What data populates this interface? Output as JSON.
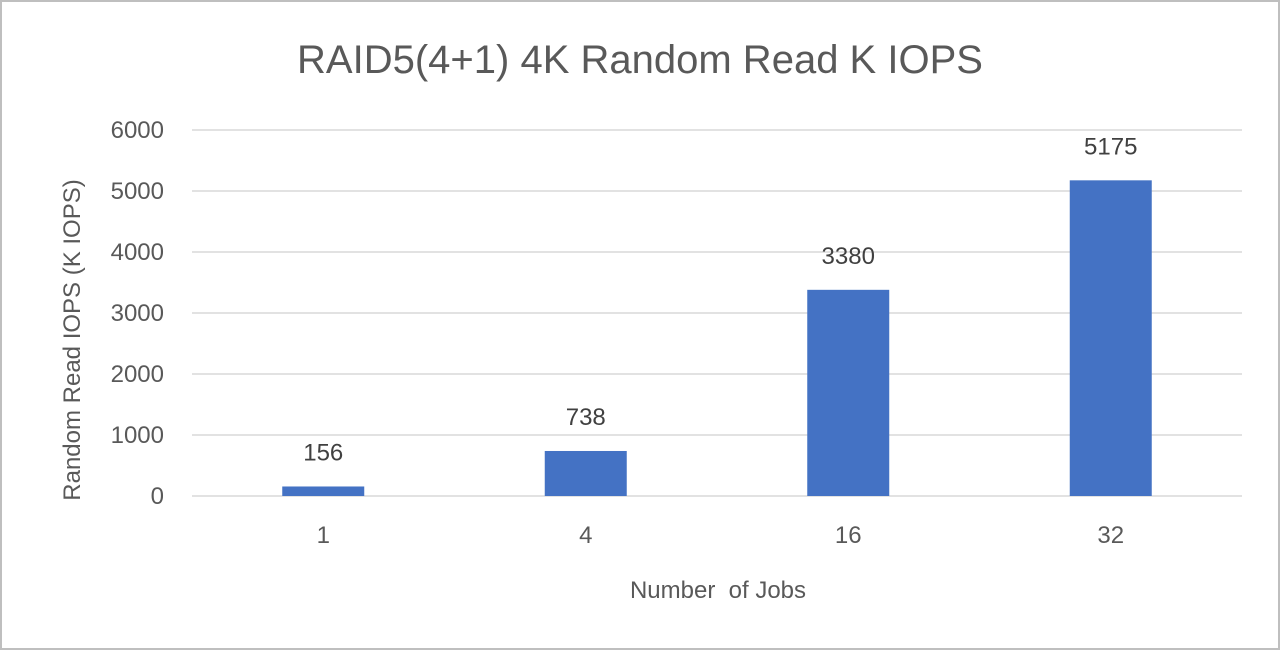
{
  "chart_data": {
    "type": "bar",
    "title": "RAID5(4+1) 4K Random Read K IOPS",
    "xlabel": "Number  of Jobs",
    "ylabel": "Random Read IOPS (K IOPS)",
    "categories": [
      "1",
      "4",
      "16",
      "32"
    ],
    "values": [
      156,
      738,
      3380,
      5175
    ],
    "data_labels": [
      "156",
      "738",
      "3380",
      "5175"
    ],
    "ylim": [
      0,
      6000
    ],
    "yticks": [
      0,
      1000,
      2000,
      3000,
      4000,
      5000,
      6000
    ],
    "ytick_labels": [
      "0",
      "1000",
      "2000",
      "3000",
      "4000",
      "5000",
      "6000"
    ],
    "grid": true,
    "legend": "none",
    "bar_color": "#4472c4"
  }
}
